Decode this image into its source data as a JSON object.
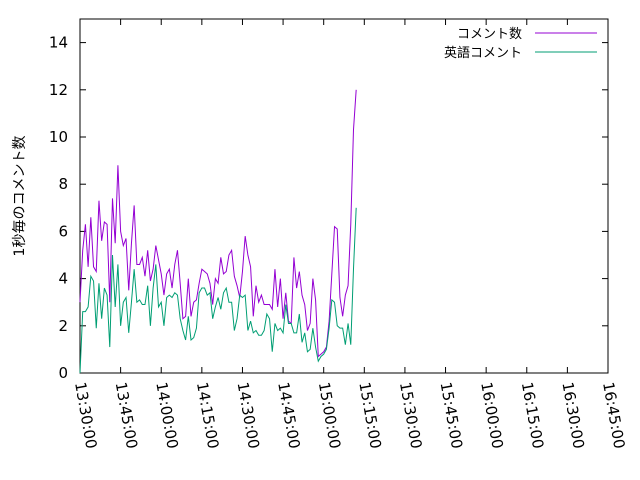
{
  "chart_data": {
    "type": "line",
    "title": "",
    "xlabel": "",
    "ylabel": "1秒毎のコメント数",
    "ylim": [
      0,
      15
    ],
    "yticks": [
      0,
      2,
      4,
      6,
      8,
      10,
      12,
      14
    ],
    "x_time_start": "13:30:00",
    "x_time_step_seconds": 60,
    "xticks": [
      "13:30:00",
      "13:45:00",
      "14:00:00",
      "14:15:00",
      "14:30:00",
      "14:45:00",
      "15:00:00",
      "15:15:00",
      "15:30:00",
      "15:45:00",
      "16:00:00",
      "16:15:00",
      "16:30:00",
      "16:45:00"
    ],
    "xlim": [
      "13:30:00",
      "16:45:00"
    ],
    "grid": false,
    "legend_position": "top-right",
    "series": [
      {
        "name": "コメント数",
        "color": "#9400d3",
        "values": [
          3.0,
          5.2,
          6.3,
          4.5,
          6.6,
          4.5,
          4.3,
          7.3,
          5.6,
          6.4,
          6.3,
          3.0,
          7.4,
          5.5,
          8.8,
          6.0,
          5.4,
          5.7,
          3.5,
          5.5,
          7.1,
          4.6,
          4.6,
          4.9,
          4.1,
          5.2,
          3.9,
          4.4,
          5.4,
          4.8,
          4.2,
          3.3,
          4.2,
          4.4,
          3.6,
          4.6,
          5.2,
          3.8,
          2.3,
          2.4,
          4.0,
          2.4,
          3.0,
          3.1,
          3.8,
          4.4,
          4.3,
          4.2,
          3.8,
          2.9,
          4.0,
          3.8,
          4.9,
          4.2,
          4.3,
          5.0,
          5.2,
          4.1,
          3.7,
          3.2,
          4.3,
          5.8,
          5.0,
          4.5,
          2.4,
          3.7,
          3.0,
          3.3,
          2.9,
          2.9,
          2.9,
          2.7,
          4.4,
          2.8,
          4.0,
          2.3,
          3.4,
          2.2,
          2.1,
          4.9,
          3.6,
          4.3,
          3.3,
          2.9,
          1.8,
          2.1,
          4.0,
          3.1,
          0.7,
          0.8,
          0.9,
          1.1,
          2.2,
          4.2,
          6.2,
          6.1,
          3.2,
          2.4,
          3.3,
          3.7,
          6.3,
          10.3,
          12.0
        ]
      },
      {
        "name": "英語コメント",
        "color": "#009e73",
        "values": [
          0.0,
          2.6,
          2.6,
          2.8,
          4.1,
          3.9,
          1.9,
          3.8,
          2.3,
          3.6,
          3.3,
          1.1,
          5.0,
          2.8,
          4.6,
          2.0,
          3.0,
          3.2,
          1.7,
          3.0,
          4.4,
          3.0,
          3.1,
          2.9,
          2.9,
          3.7,
          2.0,
          3.6,
          4.6,
          2.8,
          3.0,
          2.0,
          3.2,
          3.3,
          3.2,
          3.4,
          3.3,
          2.3,
          1.8,
          1.4,
          2.4,
          1.4,
          1.5,
          1.9,
          3.4,
          3.6,
          3.6,
          3.3,
          3.4,
          2.3,
          2.8,
          3.2,
          2.7,
          3.4,
          3.6,
          3.0,
          3.0,
          1.8,
          2.3,
          3.3,
          3.2,
          3.3,
          1.8,
          2.2,
          1.7,
          1.8,
          1.6,
          1.6,
          1.8,
          2.5,
          2.3,
          0.9,
          2.1,
          1.8,
          1.9,
          1.7,
          2.9,
          2.1,
          2.1,
          1.7,
          1.7,
          2.5,
          1.3,
          1.7,
          0.9,
          1.0,
          1.9,
          1.1,
          0.5,
          0.7,
          0.8,
          1.0,
          1.9,
          3.1,
          3.0,
          2.0,
          1.9,
          1.9,
          1.2,
          2.1,
          1.2,
          4.4,
          7.0
        ]
      }
    ]
  }
}
